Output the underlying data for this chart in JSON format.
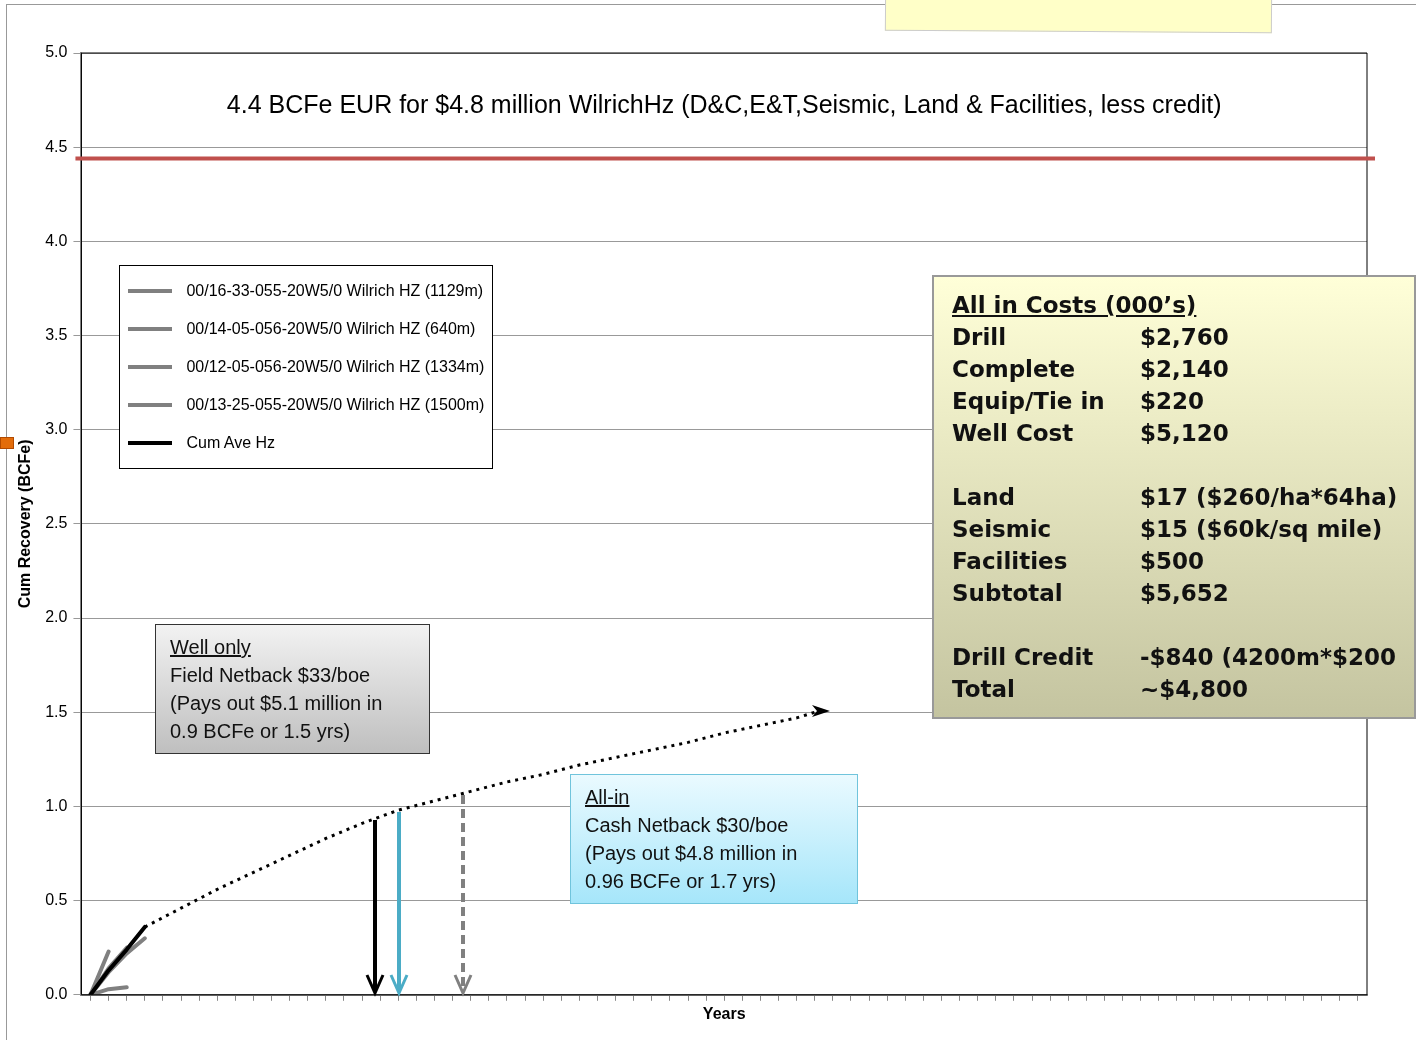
{
  "chart_data": {
    "type": "line",
    "title": "4.4 BCFe EUR for $4.8 million WilrichHz (D&C,E&T,Seismic, Land & Facilities, less credit)",
    "xlabel": "Years",
    "ylabel": "Cum Recovery (BCFe)",
    "categories": [
      null,
      null,
      null,
      null,
      null,
      null,
      null,
      null,
      null,
      null,
      null,
      null,
      null,
      null,
      null,
      null,
      null,
      null,
      null,
      null,
      null,
      null,
      null,
      null,
      null,
      null,
      null,
      null,
      null,
      null,
      null,
      null,
      null,
      null,
      null,
      null,
      null,
      null,
      null,
      null,
      null,
      null,
      null,
      null,
      null,
      null,
      null,
      null,
      null,
      null,
      null,
      null,
      null,
      null,
      null,
      null,
      null,
      null,
      null,
      null,
      null,
      null,
      null,
      null,
      null,
      null,
      null,
      null,
      null,
      null,
      null
    ],
    "series": [
      {
        "name": "00/16-33-055-20W5/0 Wilrich HZ (1129m)",
        "color": "#808080",
        "values": [
          0,
          0.23,
          null,
          null,
          null,
          null,
          null,
          null,
          null,
          null,
          null,
          null,
          null,
          null,
          null,
          null,
          null,
          null,
          null,
          null,
          null,
          null,
          null,
          null,
          null,
          null,
          null,
          null,
          null,
          null,
          null,
          null,
          null,
          null,
          null,
          null,
          null,
          null,
          null,
          null,
          null,
          null,
          null,
          null,
          null,
          null,
          null,
          null,
          null,
          null,
          null,
          null,
          null,
          null,
          null,
          null,
          null,
          null,
          null,
          null,
          null,
          null,
          null,
          null,
          null,
          null,
          null,
          null,
          null,
          null,
          null
        ]
      },
      {
        "name": "00/14-05-056-20W5/0 Wilrich HZ (640m)",
        "color": "#808080",
        "values": [
          0,
          0.03,
          0.04,
          null,
          null,
          null,
          null,
          null,
          null,
          null,
          null,
          null,
          null,
          null,
          null,
          null,
          null,
          null,
          null,
          null,
          null,
          null,
          null,
          null,
          null,
          null,
          null,
          null,
          null,
          null,
          null,
          null,
          null,
          null,
          null,
          null,
          null,
          null,
          null,
          null,
          null,
          null,
          null,
          null,
          null,
          null,
          null,
          null,
          null,
          null,
          null,
          null,
          null,
          null,
          null,
          null,
          null,
          null,
          null,
          null,
          null,
          null,
          null,
          null,
          null,
          null,
          null,
          null,
          null,
          null,
          null
        ]
      },
      {
        "name": "00/12-05-056-20W5/0 Wilrich HZ (1334m)",
        "color": "#808080",
        "values": [
          0,
          0.12,
          0.22,
          0.3,
          null,
          null,
          null,
          null,
          null,
          null,
          null,
          null,
          null,
          null,
          null,
          null,
          null,
          null,
          null,
          null,
          null,
          null,
          null,
          null,
          null,
          null,
          null,
          null,
          null,
          null,
          null,
          null,
          null,
          null,
          null,
          null,
          null,
          null,
          null,
          null,
          null,
          null,
          null,
          null,
          null,
          null,
          null,
          null,
          null,
          null,
          null,
          null,
          null,
          null,
          null,
          null,
          null,
          null,
          null,
          null,
          null,
          null,
          null,
          null,
          null,
          null,
          null,
          null,
          null,
          null,
          null
        ]
      },
      {
        "name": "00/13-25-055-20W5/0 Wilrich HZ (1500m)",
        "color": "#808080",
        "values": [
          0,
          0.14,
          0.25,
          null,
          null,
          null,
          null,
          null,
          null,
          null,
          null,
          null,
          null,
          null,
          null,
          null,
          null,
          null,
          null,
          null,
          null,
          null,
          null,
          null,
          null,
          null,
          null,
          null,
          null,
          null,
          null,
          null,
          null,
          null,
          null,
          null,
          null,
          null,
          null,
          null,
          null,
          null,
          null,
          null,
          null,
          null,
          null,
          null,
          null,
          null,
          null,
          null,
          null,
          null,
          null,
          null,
          null,
          null,
          null,
          null,
          null,
          null,
          null,
          null,
          null,
          null,
          null,
          null,
          null,
          null,
          null
        ]
      },
      {
        "name": "Cum Ave Hz",
        "color": "#000000",
        "values": [
          0,
          0.13,
          0.24,
          0.36,
          null,
          null,
          null,
          null,
          null,
          null,
          null,
          null,
          null,
          null,
          null,
          null,
          null,
          null,
          null,
          null,
          null,
          null,
          null,
          null,
          null,
          null,
          null,
          null,
          null,
          null,
          null,
          null,
          null,
          null,
          null,
          null,
          null,
          null,
          null,
          null,
          null,
          null,
          null,
          null,
          null,
          null,
          null,
          null,
          null,
          null,
          null,
          null,
          null,
          null,
          null,
          null,
          null,
          null,
          null,
          null,
          null,
          null,
          null,
          null,
          null,
          null,
          null,
          null,
          null,
          null,
          null
        ]
      },
      {
        "color": "#000000",
        "line_style": "dotted",
        "values": [
          null,
          null,
          null,
          0.36,
          null,
          0.46,
          null,
          0.56,
          null,
          0.65,
          null,
          0.74,
          null,
          0.83,
          null,
          0.91,
          null,
          0.98,
          null,
          1.03,
          null,
          1.08,
          null,
          1.13,
          null,
          1.17,
          null,
          1.22,
          null,
          1.26,
          null,
          1.3,
          null,
          1.34,
          null,
          1.39,
          null,
          1.43,
          null,
          1.47,
          1.5,
          null,
          null,
          null,
          null,
          null,
          null,
          null,
          null,
          null,
          null,
          null,
          null,
          null,
          null,
          null,
          null,
          null,
          null,
          null,
          null,
          null,
          null,
          null,
          null,
          null,
          null,
          null,
          null,
          null,
          null
        ]
      }
    ],
    "ylim": [
      0,
      5
    ],
    "yticks": [
      {
        "value": 0,
        "label": "0.0"
      },
      {
        "value": 0.5,
        "label": "0.5"
      },
      {
        "value": 1,
        "label": "1.0"
      },
      {
        "value": 1.5,
        "label": "1.5"
      },
      {
        "value": 2,
        "label": "2.0"
      },
      {
        "value": 2.5,
        "label": "2.5"
      },
      {
        "value": 3,
        "label": "3.0"
      },
      {
        "value": 3.5,
        "label": "3.5"
      },
      {
        "value": 4,
        "label": "4.0"
      },
      {
        "value": 4.5,
        "label": "4.5"
      },
      {
        "value": 5,
        "label": "5.0"
      }
    ],
    "ref_lines": [
      {
        "axis": "y",
        "value": 4.44,
        "color": "#c0504d"
      }
    ],
    "grid": "y",
    "legend": "top left",
    "tick_labels": "y",
    "annotations": [
      "Well only\nField Netback $33/boe\n(Pays out $5.1 million in\n0.9 BCFe or 1.5 yrs)",
      "All-in\nCash Netback $30/boe\n(Pays out $4.8 million in\n0.96 BCFe or 1.7 yrs)",
      "All in Costs (000’s)\nDrill\t$2,760\nComplete\t$2,140\nEquip/Tie in\t$220\nWell Cost\t$5,120\n\nLand\t$17 ($260/ha*64ha)\nSeismic\t$15 ($60k/sq mile)\nFacilities\t$500\nSubtotal\t$5,652\n\nDrill Credit\t-$840 (4200m*$200\nTotal\t~$4,800"
    ]
  }
}
